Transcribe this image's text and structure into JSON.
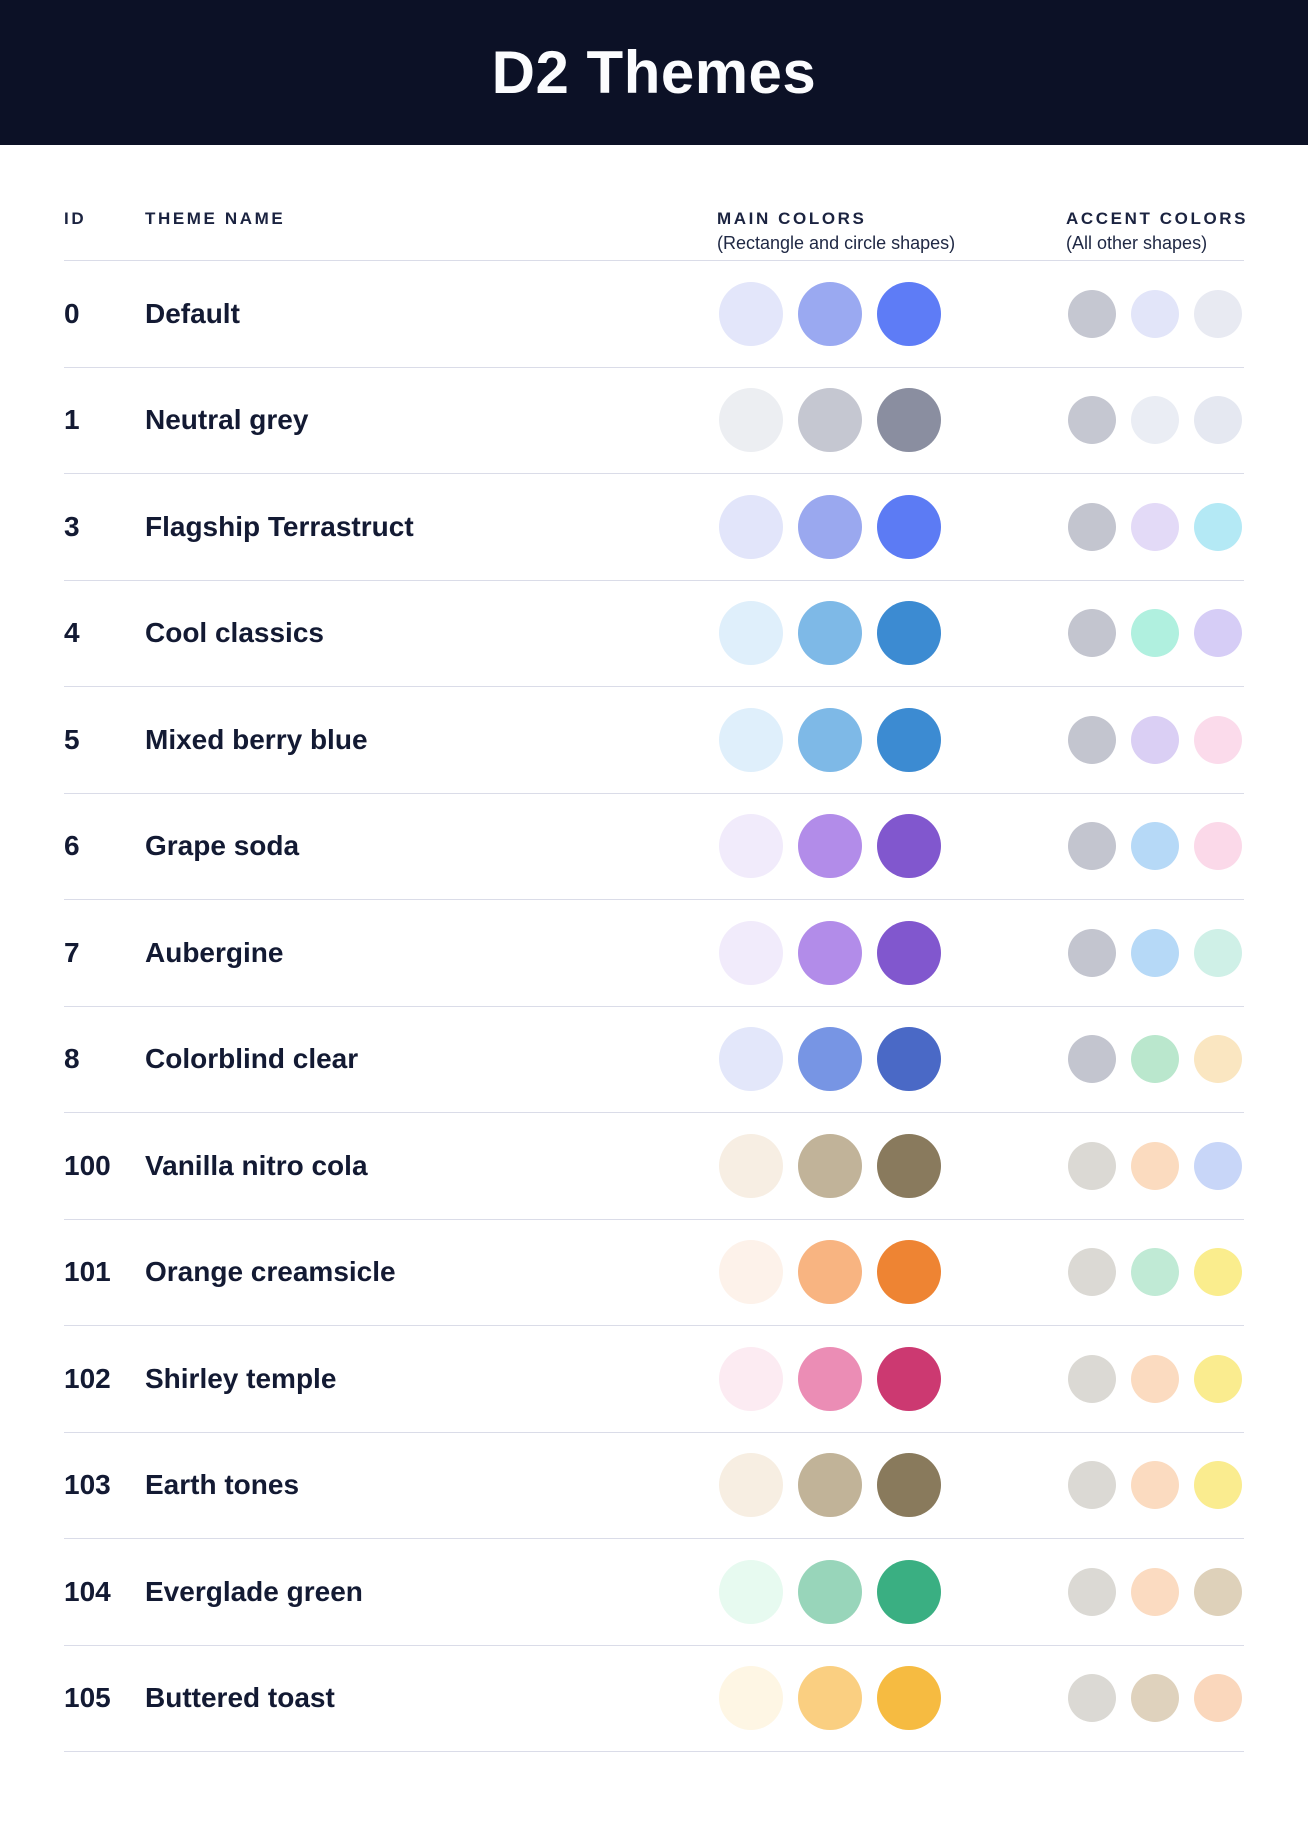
{
  "title": "D2 Themes",
  "colors": {
    "titlebar_bg": "#0C1126",
    "titlebar_text": "#FBFCFE",
    "heading_text": "#1B2340",
    "row_text": "#131A33",
    "divider": "#DADCE8"
  },
  "table": {
    "headers": {
      "id": "ID",
      "theme_name": "THEME NAME",
      "main_colors": "MAIN COLORS",
      "main_colors_sub": "(Rectangle and circle shapes)",
      "accent_colors": "ACCENT COLORS",
      "accent_colors_sub": "(All other shapes)"
    },
    "rows": [
      {
        "id": "0",
        "name": "Default",
        "main": [
          "#E3E6FA",
          "#9AA9F1",
          "#5E7CF6"
        ],
        "accent": [
          "#C5C7D1",
          "#E2E5F9",
          "#E8EAF2"
        ]
      },
      {
        "id": "1",
        "name": "Neutral grey",
        "main": [
          "#ECEEF2",
          "#C5C7D1",
          "#8A8EA0"
        ],
        "accent": [
          "#C5C7D1",
          "#EAEDF4",
          "#E5E8F1"
        ]
      },
      {
        "id": "3",
        "name": "Flagship Terrastruct",
        "main": [
          "#E2E5FA",
          "#9AA8EF",
          "#5C7BF4"
        ],
        "accent": [
          "#C3C5CF",
          "#E3DAF7",
          "#B4E9F5"
        ]
      },
      {
        "id": "4",
        "name": "Cool classics",
        "main": [
          "#DFEFFB",
          "#7EB9E7",
          "#3C8BD2"
        ],
        "accent": [
          "#C3C5CF",
          "#B0F0DF",
          "#D6CDF6"
        ]
      },
      {
        "id": "5",
        "name": "Mixed berry blue",
        "main": [
          "#DFEFFB",
          "#7EB9E7",
          "#3C8BD2"
        ],
        "accent": [
          "#C3C5CF",
          "#DACFF4",
          "#FBDBEB"
        ]
      },
      {
        "id": "6",
        "name": "Grape soda",
        "main": [
          "#F1EBFB",
          "#B28CE9",
          "#8157CE"
        ],
        "accent": [
          "#C3C5CF",
          "#B6D9F7",
          "#FBD9E9"
        ]
      },
      {
        "id": "7",
        "name": "Aubergine",
        "main": [
          "#F1EBFB",
          "#B28CE9",
          "#8157CE"
        ],
        "accent": [
          "#C3C5CF",
          "#B6D9F7",
          "#CFF0E7"
        ]
      },
      {
        "id": "8",
        "name": "Colorblind clear",
        "main": [
          "#E3E7FA",
          "#7795E4",
          "#4A69C6"
        ],
        "accent": [
          "#C3C5CF",
          "#BAE7CD",
          "#FAE6C1"
        ]
      },
      {
        "id": "100",
        "name": "Vanilla nitro cola",
        "main": [
          "#F7EEE3",
          "#C1B399",
          "#897A5D"
        ],
        "accent": [
          "#DBD9D4",
          "#FBDBBF",
          "#C8D6F8"
        ]
      },
      {
        "id": "101",
        "name": "Orange creamsicle",
        "main": [
          "#FDF2EA",
          "#F8B481",
          "#EE8433"
        ],
        "accent": [
          "#DBD9D4",
          "#C0EAD5",
          "#FAED8D"
        ]
      },
      {
        "id": "102",
        "name": "Shirley temple",
        "main": [
          "#FCEBF2",
          "#EB8DB5",
          "#CC3971"
        ],
        "accent": [
          "#DBD9D4",
          "#FBDBC0",
          "#FAEC8F"
        ]
      },
      {
        "id": "103",
        "name": "Earth tones",
        "main": [
          "#F7EEE2",
          "#C1B398",
          "#897A5C"
        ],
        "accent": [
          "#DBD9D4",
          "#FBDBC0",
          "#FAEC8F"
        ]
      },
      {
        "id": "104",
        "name": "Everglade green",
        "main": [
          "#E7FAF0",
          "#98D5BA",
          "#3AAF82"
        ],
        "accent": [
          "#DBD9D4",
          "#FBDBC1",
          "#DED1BA"
        ]
      },
      {
        "id": "105",
        "name": "Buttered toast",
        "main": [
          "#FEF6E4",
          "#FACF81",
          "#F6BB41"
        ],
        "accent": [
          "#DBD9D4",
          "#DFD2BD",
          "#FAD7BC"
        ]
      }
    ]
  }
}
